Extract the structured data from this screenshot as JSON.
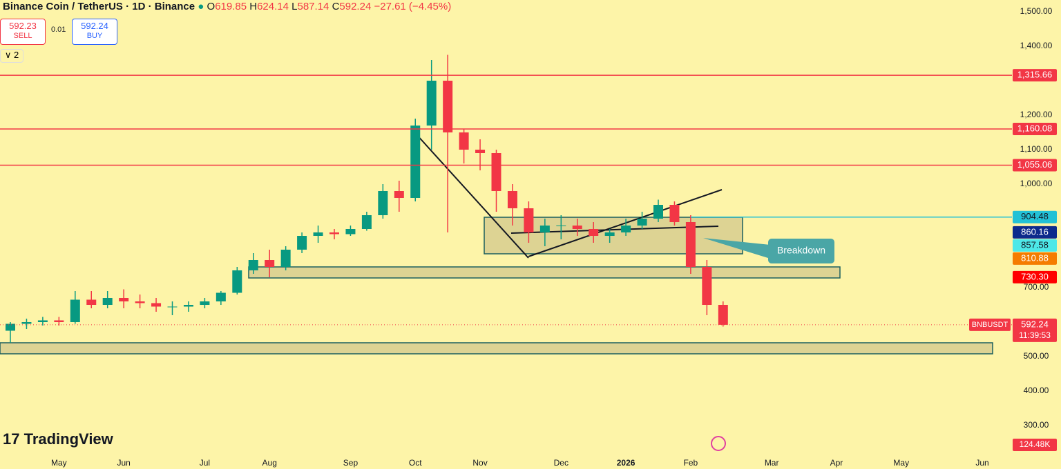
{
  "header": {
    "symbol": "Binance Coin / TetherUS · 1D · Binance",
    "open_key": "O",
    "open": "619.85",
    "high_key": "H",
    "high": "624.14",
    "low_key": "L",
    "low": "587.14",
    "close_key": "C",
    "close": "592.24",
    "change": "−27.61 (−4.45%)",
    "indicators": "2"
  },
  "trade": {
    "sell_price": "592.23",
    "sell": "SELL",
    "spread": "0.01",
    "buy_price": "592.24",
    "buy": "BUY"
  },
  "logo": "TradingView",
  "chart_data": {
    "type": "candlestick",
    "categories": [
      null,
      null,
      null,
      "May",
      null,
      null,
      null,
      "Jun",
      null,
      null,
      null,
      null,
      "Jul",
      null,
      null,
      null,
      "Aug",
      null,
      null,
      null,
      null,
      "Sep",
      null,
      null,
      null,
      "Oct",
      null,
      null,
      null,
      "Nov",
      null,
      null,
      null,
      null,
      "Dec",
      null,
      null,
      null,
      "2026",
      null,
      null,
      null,
      "Feb",
      null,
      null,
      null,
      null,
      "Mar",
      null,
      null,
      null,
      "Apr",
      null,
      null,
      null,
      "May",
      null,
      null,
      null,
      null,
      "Jun"
    ],
    "open": [
      575,
      595,
      600,
      605,
      600,
      665,
      650,
      670,
      660,
      655,
      645,
      645,
      650,
      660,
      685,
      750,
      780,
      760,
      810,
      850,
      860,
      855,
      870,
      910,
      980,
      960,
      1170,
      1300,
      1150,
      1100,
      1090,
      980,
      930,
      860,
      880,
      880,
      870,
      850,
      860,
      880,
      900,
      940,
      890,
      760,
      650,
      null,
      null,
      null,
      null,
      null,
      null,
      null,
      null,
      null,
      null,
      null,
      null,
      null,
      null,
      null,
      null
    ],
    "high": [
      600,
      610,
      615,
      615,
      690,
      690,
      690,
      695,
      680,
      670,
      660,
      660,
      670,
      690,
      760,
      800,
      810,
      820,
      860,
      880,
      870,
      880,
      920,
      1000,
      1010,
      1190,
      1360,
      1375,
      1160,
      1130,
      1100,
      1000,
      950,
      900,
      910,
      900,
      890,
      870,
      900,
      920,
      955,
      950,
      910,
      780,
      660,
      null,
      null,
      null,
      null,
      null,
      null,
      null,
      null,
      null,
      null,
      null,
      null,
      null,
      null,
      null,
      null
    ],
    "low": [
      540,
      580,
      590,
      590,
      595,
      640,
      640,
      640,
      640,
      630,
      620,
      630,
      640,
      650,
      680,
      740,
      730,
      750,
      800,
      830,
      840,
      850,
      865,
      900,
      920,
      950,
      1100,
      860,
      1060,
      1040,
      920,
      880,
      830,
      820,
      840,
      850,
      830,
      830,
      850,
      870,
      890,
      880,
      740,
      620,
      587,
      null,
      null,
      null,
      null,
      null,
      null,
      null,
      null,
      null,
      null,
      null,
      null,
      null,
      null,
      null,
      null
    ],
    "close": [
      595,
      600,
      605,
      600,
      665,
      650,
      670,
      660,
      655,
      645,
      645,
      650,
      660,
      685,
      750,
      780,
      760,
      810,
      850,
      860,
      855,
      870,
      910,
      980,
      960,
      1170,
      1300,
      1150,
      1100,
      1090,
      980,
      930,
      860,
      880,
      880,
      870,
      850,
      860,
      880,
      900,
      940,
      890,
      760,
      650,
      592.24,
      null,
      null,
      null,
      null,
      null,
      null,
      null,
      null,
      null,
      null,
      null,
      null,
      null,
      null,
      null,
      null
    ],
    "up_color": "#089981",
    "down_color": "#f23645",
    "ylim": [
      228,
      1534
    ],
    "yticks": [
      {
        "value": 1500,
        "label": "1,500.00"
      },
      {
        "value": 1400,
        "label": "1,400.00"
      },
      {
        "value": 1200,
        "label": "1,200.00"
      },
      {
        "value": 1100,
        "label": "1,100.00"
      },
      {
        "value": 1000,
        "label": "1,000.00"
      },
      {
        "value": 700,
        "label": "700.00"
      },
      {
        "value": 500,
        "label": "500.00"
      },
      {
        "value": 400,
        "label": "400.00"
      },
      {
        "value": 300,
        "label": "300.00"
      }
    ],
    "levels": [
      {
        "value": 1315.66,
        "label": "1,315.66",
        "color": "#f23645"
      },
      {
        "value": 1160.08,
        "label": "1,160.08",
        "color": "#f23645"
      },
      {
        "value": 1055.06,
        "label": "1,055.06",
        "color": "#f23645"
      },
      {
        "value": 904.48,
        "label": "904.48",
        "color": "#22c1d6"
      }
    ],
    "price_labels": [
      {
        "value": 860.16,
        "label": "860.16",
        "color": "#0d2a8c"
      },
      {
        "value": 857.58,
        "label": "857.58",
        "color": "#4de8e8"
      },
      {
        "value": 810.88,
        "label": "810.88",
        "color": "#f57c00"
      },
      {
        "value": 730.3,
        "label": "730.30",
        "color": "#ff0000"
      }
    ],
    "last_price": {
      "value": 592.24,
      "symbol": "BNBUSDT",
      "countdown": "11:39:53",
      "color": "#f23645"
    },
    "zones": [
      {
        "top": 904,
        "bottom": 798
      },
      {
        "top": 760,
        "bottom": 728
      },
      {
        "top": 540,
        "bottom": 508
      }
    ],
    "annotation": "Breakdown",
    "volume_label": "124.48K"
  }
}
